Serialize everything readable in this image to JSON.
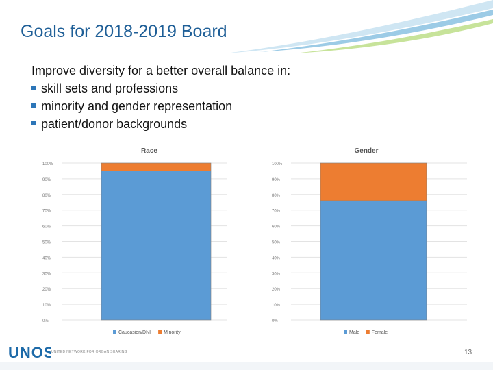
{
  "slide": {
    "title": "Goals for 2018-2019 Board",
    "intro": "Improve diversity for a better overall balance in:",
    "bullets": [
      "skill sets and professions",
      "minority and gender representation",
      "patient/donor backgrounds"
    ],
    "logo_text": "UNOS",
    "tagline": "UNITED NETWORK FOR ORGAN SHARING",
    "page_number": "13"
  },
  "chart_data": [
    {
      "type": "bar",
      "stacked": true,
      "title": "Race",
      "categories": [
        ""
      ],
      "series": [
        {
          "name": "Caucasion/DNI",
          "values": [
            0.95
          ],
          "color": "#5b9bd5"
        },
        {
          "name": "Minority",
          "values": [
            0.05
          ],
          "color": "#ed7d31"
        }
      ],
      "ylim": [
        0,
        1
      ],
      "yticks": [
        "0%",
        "10%",
        "20%",
        "30%",
        "40%",
        "50%",
        "60%",
        "70%",
        "80%",
        "90%",
        "100%"
      ],
      "grid": true,
      "legend": "bottom"
    },
    {
      "type": "bar",
      "stacked": true,
      "title": "Gender",
      "categories": [
        ""
      ],
      "series": [
        {
          "name": "Male",
          "values": [
            0.76
          ],
          "color": "#5b9bd5"
        },
        {
          "name": "Female",
          "values": [
            0.24
          ],
          "color": "#ed7d31"
        }
      ],
      "ylim": [
        0,
        1
      ],
      "yticks": [
        "0%",
        "10%",
        "20%",
        "30%",
        "40%",
        "50%",
        "60%",
        "70%",
        "80%",
        "90%",
        "100%"
      ],
      "grid": true,
      "legend": "bottom"
    }
  ]
}
